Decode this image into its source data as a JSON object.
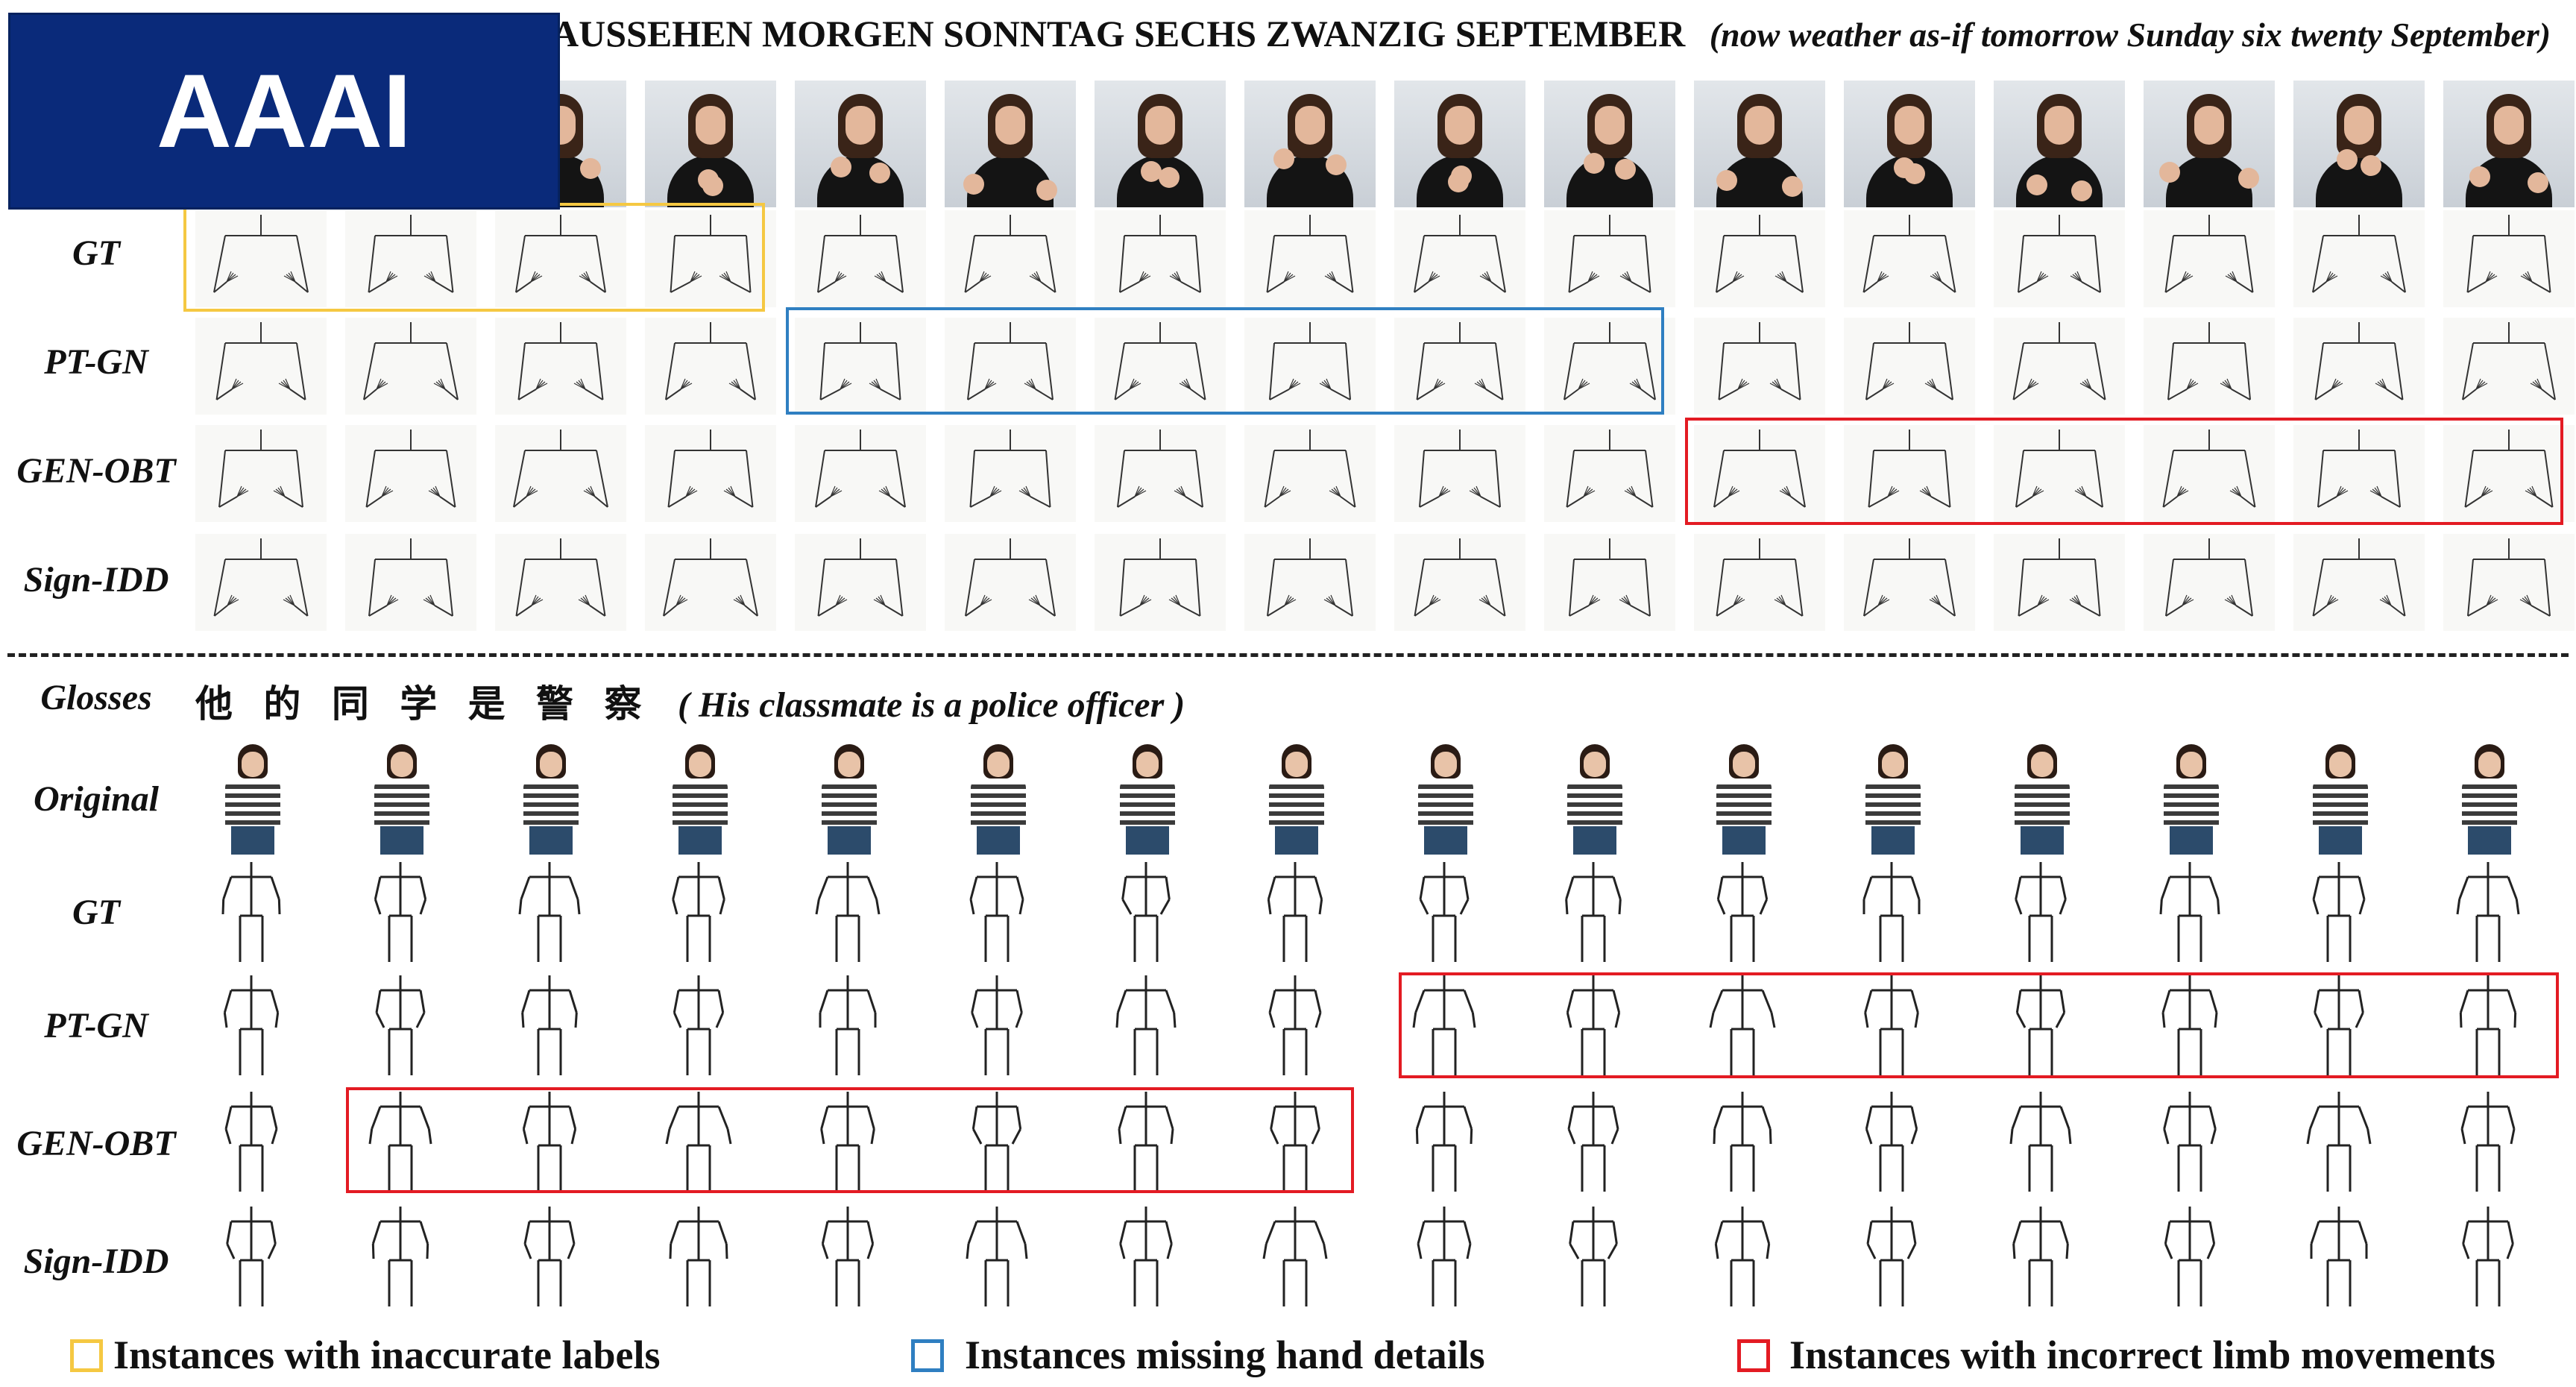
{
  "badge": {
    "text": "AAAI",
    "color": "#0a2a7a"
  },
  "top": {
    "gloss_text": "AUSSEHEN MORGEN SONNTAG SECHS ZWANZIG SEPTEMBER",
    "translation": "(now weather as-if tomorrow Sunday six twenty September)",
    "row_labels": [
      "GT",
      "PT-GN",
      "GEN-OBT",
      "Sign-IDD"
    ]
  },
  "bottom": {
    "glosses_label": "Glosses",
    "gloss_text": "他 的 同 学 是 警 察",
    "translation": "( His classmate is a police officer )",
    "row_labels": [
      "Original",
      "GT",
      "PT-GN",
      "GEN-OBT",
      "Sign-IDD"
    ]
  },
  "legend": [
    {
      "text": "Instances with inaccurate labels",
      "color": "#f5c842"
    },
    {
      "text": "Instances missing hand details",
      "color": "#2f7fc1"
    },
    {
      "text": "Instances with incorrect limb movements",
      "color": "#e31b23"
    }
  ],
  "colors": {
    "separator": "#222222",
    "skeleton_stroke": "#333333"
  }
}
